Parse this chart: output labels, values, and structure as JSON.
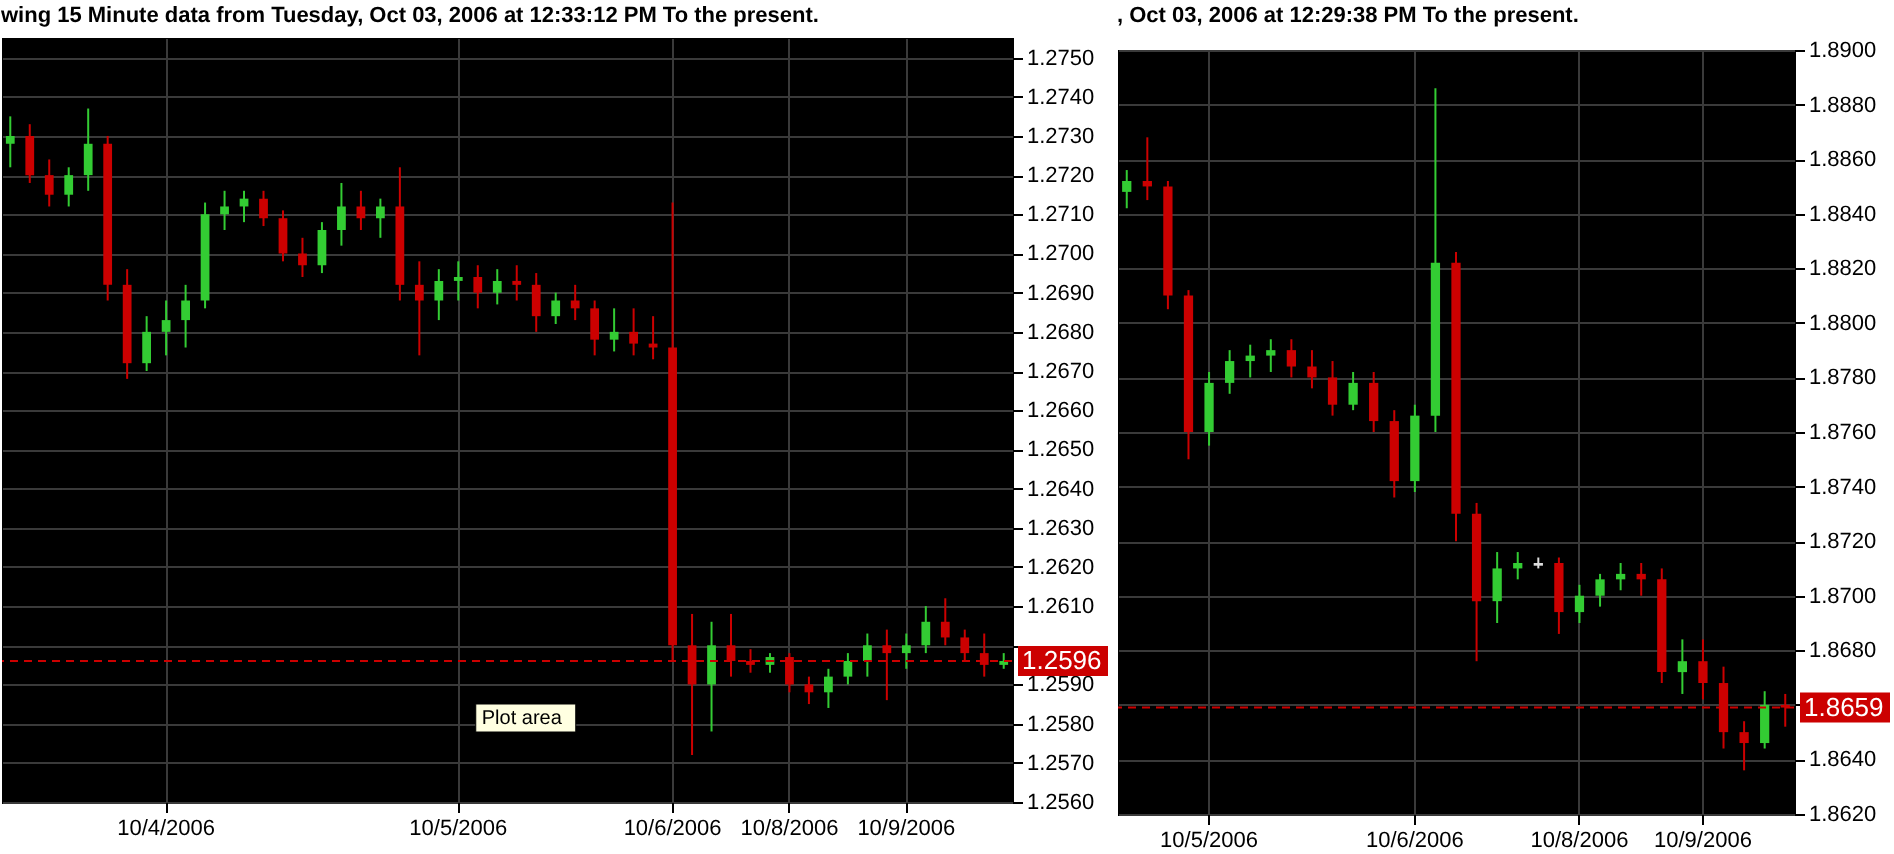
{
  "chart_data": [
    {
      "type": "candlestick",
      "title": "wing 15 Minute  data from Tuesday, Oct 03, 2006 at 12:33:12 PM To the present.",
      "grid": true,
      "categories": [
        null,
        null,
        null,
        null,
        null,
        null,
        null,
        null,
        "10/4/2006",
        null,
        null,
        null,
        null,
        null,
        null,
        null,
        null,
        null,
        null,
        null,
        null,
        null,
        null,
        "10/5/2006",
        null,
        null,
        null,
        null,
        null,
        null,
        null,
        null,
        null,
        null,
        "10/6/2006",
        null,
        null,
        null,
        null,
        null,
        "10/8/2006",
        null,
        null,
        null,
        null,
        null,
        "10/9/2006",
        null,
        null,
        null,
        null,
        null
      ],
      "ylim": [
        1.256,
        1.2755
      ],
      "yticks": [
        {
          "value": 1.256,
          "label": "1.2560"
        },
        {
          "value": 1.257,
          "label": "1.2570"
        },
        {
          "value": 1.258,
          "label": "1.2580"
        },
        {
          "value": 1.259,
          "label": "1.2590"
        },
        {
          "value": 1.26,
          "label": null
        },
        {
          "value": 1.261,
          "label": "1.2610"
        },
        {
          "value": 1.262,
          "label": "1.2620"
        },
        {
          "value": 1.263,
          "label": "1.2630"
        },
        {
          "value": 1.264,
          "label": "1.2640"
        },
        {
          "value": 1.265,
          "label": "1.2650"
        },
        {
          "value": 1.266,
          "label": "1.2660"
        },
        {
          "value": 1.267,
          "label": "1.2670"
        },
        {
          "value": 1.268,
          "label": "1.2680"
        },
        {
          "value": 1.269,
          "label": "1.2690"
        },
        {
          "value": 1.27,
          "label": "1.2700"
        },
        {
          "value": 1.271,
          "label": "1.2710"
        },
        {
          "value": 1.272,
          "label": "1.2720"
        },
        {
          "value": 1.273,
          "label": "1.2730"
        },
        {
          "value": 1.274,
          "label": "1.2740"
        },
        {
          "value": 1.275,
          "label": "1.2750"
        }
      ],
      "ref_lines": [
        {
          "axis": "y",
          "value": 1.2596,
          "label": "1.2596",
          "color": "#cc0000",
          "line_style": "dashed"
        }
      ],
      "annotations": [
        "Plot area"
      ],
      "ohlc": [
        [
          1.2728,
          1.2735,
          1.2722,
          1.273
        ],
        [
          1.273,
          1.2733,
          1.2718,
          1.272
        ],
        [
          1.272,
          1.2724,
          1.2712,
          1.2715
        ],
        [
          1.2715,
          1.2722,
          1.2712,
          1.272
        ],
        [
          1.272,
          1.2737,
          1.2716,
          1.2728
        ],
        [
          1.2728,
          1.273,
          1.2688,
          1.2692
        ],
        [
          1.2692,
          1.2696,
          1.2668,
          1.2672
        ],
        [
          1.2672,
          1.2684,
          1.267,
          1.268
        ],
        [
          1.268,
          1.2688,
          1.2674,
          1.2683
        ],
        [
          1.2683,
          1.2692,
          1.2676,
          1.2688
        ],
        [
          1.2688,
          1.2713,
          1.2686,
          1.271
        ],
        [
          1.271,
          1.2716,
          1.2706,
          1.2712
        ],
        [
          1.2712,
          1.2716,
          1.2708,
          1.2714
        ],
        [
          1.2714,
          1.2716,
          1.2707,
          1.2709
        ],
        [
          1.2709,
          1.2711,
          1.2698,
          1.27
        ],
        [
          1.27,
          1.2704,
          1.2694,
          1.2697
        ],
        [
          1.2697,
          1.2708,
          1.2695,
          1.2706
        ],
        [
          1.2706,
          1.2718,
          1.2702,
          1.2712
        ],
        [
          1.2712,
          1.2716,
          1.2706,
          1.2709
        ],
        [
          1.2709,
          1.2714,
          1.2704,
          1.2712
        ],
        [
          1.2712,
          1.2722,
          1.2688,
          1.2692
        ],
        [
          1.2692,
          1.2698,
          1.2674,
          1.2688
        ],
        [
          1.2688,
          1.2696,
          1.2683,
          1.2693
        ],
        [
          1.2693,
          1.2698,
          1.2688,
          1.2694
        ],
        [
          1.2694,
          1.2697,
          1.2686,
          1.269
        ],
        [
          1.269,
          1.2696,
          1.2687,
          1.2693
        ],
        [
          1.2693,
          1.2697,
          1.2688,
          1.2692
        ],
        [
          1.2692,
          1.2695,
          1.268,
          1.2684
        ],
        [
          1.2684,
          1.269,
          1.2682,
          1.2688
        ],
        [
          1.2688,
          1.2692,
          1.2683,
          1.2686
        ],
        [
          1.2686,
          1.2688,
          1.2674,
          1.2678
        ],
        [
          1.2678,
          1.2686,
          1.2675,
          1.268
        ],
        [
          1.268,
          1.2686,
          1.2674,
          1.2677
        ],
        [
          1.2677,
          1.2684,
          1.2673,
          1.2676
        ],
        [
          1.2676,
          1.2713,
          1.2596,
          1.26
        ],
        [
          1.26,
          1.2608,
          1.2572,
          1.259
        ],
        [
          1.259,
          1.2606,
          1.2578,
          1.26
        ],
        [
          1.26,
          1.2608,
          1.2592,
          1.2596
        ],
        [
          1.2596,
          1.2599,
          1.2593,
          1.2595
        ],
        [
          1.2595,
          1.2598,
          1.2593,
          1.2597
        ],
        [
          1.2597,
          1.2598,
          1.2588,
          1.259
        ],
        [
          1.259,
          1.2592,
          1.2585,
          1.2588
        ],
        [
          1.2588,
          1.2594,
          1.2584,
          1.2592
        ],
        [
          1.2592,
          1.2598,
          1.259,
          1.2596
        ],
        [
          1.2596,
          1.2603,
          1.2592,
          1.26
        ],
        [
          1.26,
          1.2604,
          1.2586,
          1.2598
        ],
        [
          1.2598,
          1.2603,
          1.2594,
          1.26
        ],
        [
          1.26,
          1.261,
          1.2598,
          1.2606
        ],
        [
          1.2606,
          1.2612,
          1.26,
          1.2602
        ],
        [
          1.2602,
          1.2604,
          1.2596,
          1.2598
        ],
        [
          1.2598,
          1.2603,
          1.2592,
          1.2595
        ],
        [
          1.2595,
          1.2598,
          1.2594,
          1.2596
        ]
      ],
      "colors": [
        "#33cc33",
        "#cc0000",
        "#cc0000",
        "#33cc33",
        "#33cc33",
        "#cc0000",
        "#cc0000",
        "#33cc33",
        "#33cc33",
        "#33cc33",
        "#33cc33",
        "#33cc33",
        "#33cc33",
        "#cc0000",
        "#cc0000",
        "#cc0000",
        "#33cc33",
        "#33cc33",
        "#cc0000",
        "#33cc33",
        "#cc0000",
        "#cc0000",
        "#33cc33",
        "#33cc33",
        "#cc0000",
        "#33cc33",
        "#cc0000",
        "#cc0000",
        "#33cc33",
        "#cc0000",
        "#cc0000",
        "#33cc33",
        "#cc0000",
        "#cc0000",
        "#cc0000",
        "#cc0000",
        "#33cc33",
        "#cc0000",
        "#cc0000",
        "#33cc33",
        "#cc0000",
        "#cc0000",
        "#33cc33",
        "#33cc33",
        "#33cc33",
        "#cc0000",
        "#33cc33",
        "#33cc33",
        "#cc0000",
        "#cc0000",
        "#cc0000",
        "#33cc33"
      ]
    },
    {
      "type": "candlestick",
      "title": ", Oct 03, 2006 at 12:29:38 PM To the present.",
      "grid": true,
      "categories": [
        null,
        null,
        null,
        null,
        "10/5/2006",
        null,
        null,
        null,
        null,
        null,
        null,
        null,
        null,
        null,
        "10/6/2006",
        null,
        null,
        null,
        null,
        null,
        null,
        null,
        "10/8/2006",
        null,
        null,
        null,
        null,
        null,
        "10/9/2006",
        null,
        null,
        null,
        null
      ],
      "ylim": [
        1.862,
        1.89
      ],
      "yticks": [
        {
          "value": 1.862,
          "label": "1.8620"
        },
        {
          "value": 1.864,
          "label": "1.8640"
        },
        {
          "value": 1.866,
          "label": null
        },
        {
          "value": 1.868,
          "label": "1.8680"
        },
        {
          "value": 1.87,
          "label": "1.8700"
        },
        {
          "value": 1.872,
          "label": "1.8720"
        },
        {
          "value": 1.874,
          "label": "1.8740"
        },
        {
          "value": 1.876,
          "label": "1.8760"
        },
        {
          "value": 1.878,
          "label": "1.8780"
        },
        {
          "value": 1.88,
          "label": "1.8800"
        },
        {
          "value": 1.882,
          "label": "1.8820"
        },
        {
          "value": 1.884,
          "label": "1.8840"
        },
        {
          "value": 1.886,
          "label": "1.8860"
        },
        {
          "value": 1.888,
          "label": "1.8880"
        },
        {
          "value": 1.89,
          "label": "1.8900"
        }
      ],
      "ref_lines": [
        {
          "axis": "y",
          "value": 1.8659,
          "label": "1.8659",
          "color": "#cc0000",
          "line_style": "dashed"
        }
      ],
      "ohlc": [
        [
          1.8848,
          1.8856,
          1.8842,
          1.8852
        ],
        [
          1.8852,
          1.8868,
          1.8845,
          1.885
        ],
        [
          1.885,
          1.8852,
          1.8805,
          1.881
        ],
        [
          1.881,
          1.8812,
          1.875,
          1.876
        ],
        [
          1.876,
          1.8782,
          1.8755,
          1.8778
        ],
        [
          1.8778,
          1.879,
          1.8774,
          1.8786
        ],
        [
          1.8786,
          1.8792,
          1.878,
          1.8788
        ],
        [
          1.8788,
          1.8794,
          1.8782,
          1.879
        ],
        [
          1.879,
          1.8794,
          1.878,
          1.8784
        ],
        [
          1.8784,
          1.879,
          1.8776,
          1.878
        ],
        [
          1.878,
          1.8786,
          1.8766,
          1.877
        ],
        [
          1.877,
          1.8782,
          1.8768,
          1.8778
        ],
        [
          1.8778,
          1.8782,
          1.876,
          1.8764
        ],
        [
          1.8764,
          1.8768,
          1.8736,
          1.8742
        ],
        [
          1.8742,
          1.877,
          1.8738,
          1.8766
        ],
        [
          1.8766,
          1.8886,
          1.876,
          1.8822
        ],
        [
          1.8822,
          1.8826,
          1.872,
          1.873
        ],
        [
          1.873,
          1.8734,
          1.8676,
          1.8698
        ],
        [
          1.8698,
          1.8716,
          1.869,
          1.871
        ],
        [
          1.871,
          1.8716,
          1.8706,
          1.8712
        ],
        [
          1.8712,
          1.8714,
          1.871,
          1.8711
        ],
        [
          1.8712,
          1.8714,
          1.8686,
          1.8694
        ],
        [
          1.8694,
          1.8704,
          1.869,
          1.87
        ],
        [
          1.87,
          1.8708,
          1.8696,
          1.8706
        ],
        [
          1.8706,
          1.8712,
          1.8702,
          1.8708
        ],
        [
          1.8708,
          1.8712,
          1.87,
          1.8706
        ],
        [
          1.8706,
          1.871,
          1.8668,
          1.8672
        ],
        [
          1.8672,
          1.8684,
          1.8664,
          1.8676
        ],
        [
          1.8676,
          1.8684,
          1.8662,
          1.8668
        ],
        [
          1.8668,
          1.8674,
          1.8644,
          1.865
        ],
        [
          1.865,
          1.8654,
          1.8636,
          1.8646
        ],
        [
          1.8646,
          1.8665,
          1.8644,
          1.866
        ],
        [
          1.866,
          1.8664,
          1.8652,
          1.8659
        ]
      ],
      "colors": [
        "#33cc33",
        "#cc0000",
        "#cc0000",
        "#cc0000",
        "#33cc33",
        "#33cc33",
        "#33cc33",
        "#33cc33",
        "#cc0000",
        "#cc0000",
        "#cc0000",
        "#33cc33",
        "#cc0000",
        "#cc0000",
        "#33cc33",
        "#33cc33",
        "#cc0000",
        "#cc0000",
        "#33cc33",
        "#33cc33",
        "#dddddd",
        "#cc0000",
        "#33cc33",
        "#33cc33",
        "#33cc33",
        "#cc0000",
        "#cc0000",
        "#33cc33",
        "#cc0000",
        "#cc0000",
        "#cc0000",
        "#33cc33",
        "#cc0000"
      ]
    }
  ]
}
